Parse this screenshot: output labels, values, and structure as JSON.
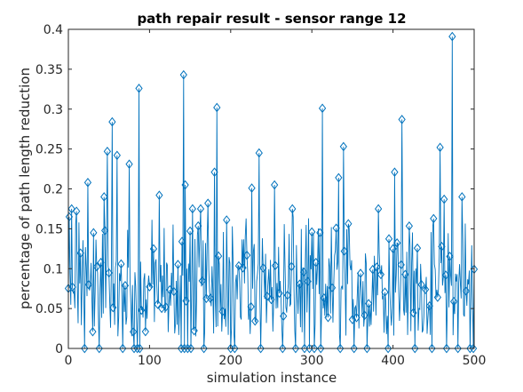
{
  "chart_data": {
    "type": "line",
    "title": "path repair result - sensor range 12",
    "xlabel": "simulation instance",
    "ylabel": "percentage of path length reduction",
    "xlim": [
      0,
      500
    ],
    "ylim": [
      0,
      0.4
    ],
    "xticks": [
      "0",
      "100",
      "200",
      "300",
      "400",
      "500"
    ],
    "yticks": [
      "0",
      "0.05",
      "0.1",
      "0.15",
      "0.2",
      "0.25",
      "0.3",
      "0.35",
      "0.4"
    ],
    "grid": false,
    "series": [
      {
        "color": "#0072BD",
        "marker": "diamond",
        "peaks": [
          {
            "x": 1,
            "y": 0.165
          },
          {
            "x": 4,
            "y": 0.175
          },
          {
            "x": 10,
            "y": 0.172
          },
          {
            "x": 24,
            "y": 0.208
          },
          {
            "x": 31,
            "y": 0.145
          },
          {
            "x": 44,
            "y": 0.19
          },
          {
            "x": 48,
            "y": 0.247
          },
          {
            "x": 54,
            "y": 0.284
          },
          {
            "x": 60,
            "y": 0.242
          },
          {
            "x": 75,
            "y": 0.231
          },
          {
            "x": 87,
            "y": 0.326
          },
          {
            "x": 112,
            "y": 0.192
          },
          {
            "x": 142,
            "y": 0.343
          },
          {
            "x": 144,
            "y": 0.205
          },
          {
            "x": 153,
            "y": 0.175
          },
          {
            "x": 163,
            "y": 0.175
          },
          {
            "x": 172,
            "y": 0.182
          },
          {
            "x": 180,
            "y": 0.221
          },
          {
            "x": 183,
            "y": 0.302
          },
          {
            "x": 195,
            "y": 0.161
          },
          {
            "x": 226,
            "y": 0.201
          },
          {
            "x": 235,
            "y": 0.245
          },
          {
            "x": 254,
            "y": 0.205
          },
          {
            "x": 276,
            "y": 0.175
          },
          {
            "x": 313,
            "y": 0.301
          },
          {
            "x": 333,
            "y": 0.214
          },
          {
            "x": 339,
            "y": 0.253
          },
          {
            "x": 382,
            "y": 0.175
          },
          {
            "x": 402,
            "y": 0.221
          },
          {
            "x": 411,
            "y": 0.287
          },
          {
            "x": 458,
            "y": 0.252
          },
          {
            "x": 463,
            "y": 0.187
          },
          {
            "x": 473,
            "y": 0.391
          },
          {
            "x": 485,
            "y": 0.19
          }
        ],
        "zero_points": [
          20,
          38,
          67,
          81,
          85,
          88,
          139,
          143,
          147,
          151,
          167,
          200,
          205,
          237,
          264,
          280,
          291,
          297,
          303,
          311,
          335,
          352,
          368,
          394,
          427,
          448,
          466,
          480,
          495,
          499
        ]
      }
    ]
  }
}
